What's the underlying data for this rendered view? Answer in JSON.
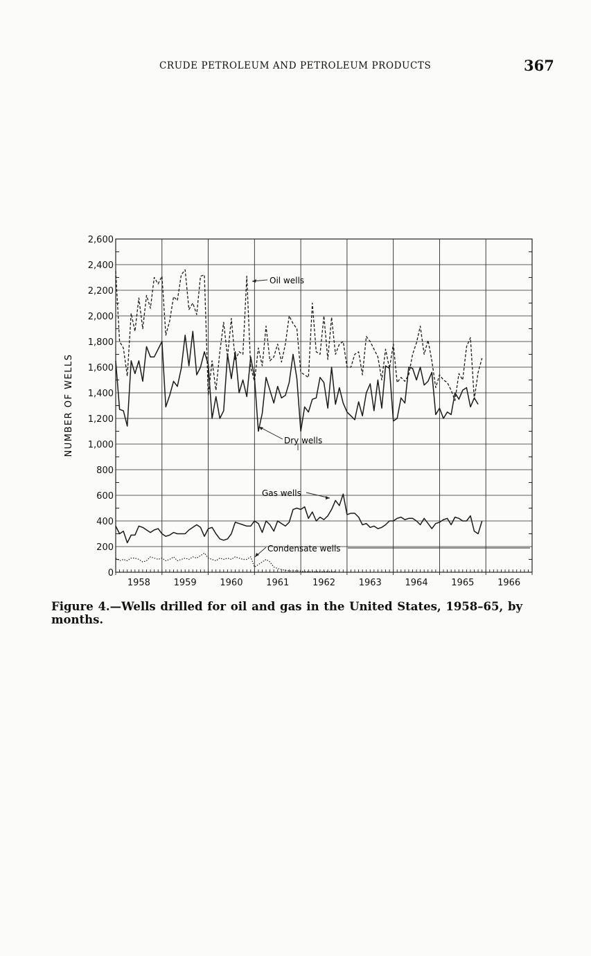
{
  "page": {
    "running_head": "CRUDE PETROLEUM AND PETROLEUM PRODUCTS",
    "page_number": "367",
    "caption": "Figure 4.—Wells drilled for oil and gas in the United States, 1958–65, by months."
  },
  "chart_data": {
    "type": "line",
    "ylabel": "NUMBER OF WELLS",
    "ylim": [
      0,
      2600
    ],
    "yticks": [
      0,
      200,
      400,
      600,
      800,
      1000,
      1200,
      1400,
      1600,
      1800,
      2000,
      2200,
      2400,
      2600
    ],
    "ytick_labels": [
      "0",
      "200",
      "400",
      "600",
      "800",
      "1,000",
      "1,200",
      "1,400",
      "1,600",
      "1,800",
      "2,000",
      "2,200",
      "2,400",
      "2,600"
    ],
    "x_unit": "years",
    "xlim": [
      1958,
      1967
    ],
    "year_labels": [
      "1958",
      "1959",
      "1960",
      "1961",
      "1962",
      "1963",
      "1964",
      "1965",
      "1966"
    ],
    "grid": true,
    "series": [
      {
        "name": "Oil wells",
        "style": "dashed",
        "color": "#1a1a1a",
        "values": [
          2350,
          1800,
          1750,
          1530,
          2020,
          1880,
          2140,
          1900,
          2160,
          2060,
          2300,
          2250,
          2310,
          1850,
          1960,
          2150,
          2120,
          2320,
          2360,
          2050,
          2100,
          2010,
          2310,
          2320,
          1380,
          1650,
          1420,
          1720,
          1950,
          1680,
          1980,
          1650,
          1720,
          1700,
          2310,
          1600,
          1490,
          1750,
          1610,
          1920,
          1650,
          1680,
          1780,
          1640,
          1780,
          2000,
          1940,
          1900,
          1560,
          1540,
          1520,
          2100,
          1720,
          1700,
          2000,
          1660,
          1990,
          1700,
          1780,
          1800,
          1600,
          1600,
          1700,
          1720,
          1540,
          1840,
          1800,
          1740,
          1680,
          1500,
          1740,
          1590,
          1780,
          1480,
          1520,
          1490,
          1540,
          1700,
          1790,
          1920,
          1700,
          1810,
          1650,
          1440,
          1540,
          1500,
          1480,
          1420,
          1340,
          1550,
          1500,
          1760,
          1830,
          1350,
          1560,
          1670
        ]
      },
      {
        "name": "Dry wells",
        "style": "solid",
        "color": "#1a1a1a",
        "values": [
          1650,
          1270,
          1260,
          1140,
          1650,
          1550,
          1650,
          1490,
          1760,
          1680,
          1680,
          1740,
          1800,
          1290,
          1380,
          1490,
          1450,
          1590,
          1850,
          1610,
          1880,
          1540,
          1600,
          1720,
          1620,
          1200,
          1370,
          1200,
          1260,
          1700,
          1510,
          1720,
          1400,
          1500,
          1370,
          1680,
          1520,
          1100,
          1240,
          1520,
          1420,
          1320,
          1450,
          1360,
          1380,
          1480,
          1700,
          1510,
          1100,
          1290,
          1250,
          1350,
          1360,
          1520,
          1480,
          1280,
          1600,
          1310,
          1440,
          1320,
          1250,
          1220,
          1190,
          1330,
          1220,
          1400,
          1470,
          1260,
          1500,
          1280,
          1610,
          1590,
          1180,
          1200,
          1360,
          1320,
          1600,
          1590,
          1500,
          1600,
          1460,
          1490,
          1560,
          1230,
          1280,
          1200,
          1250,
          1230,
          1400,
          1350,
          1420,
          1440,
          1290,
          1360,
          1310
        ]
      },
      {
        "name": "Gas wells",
        "style": "solid",
        "color": "#1a1a1a",
        "values": [
          360,
          300,
          320,
          230,
          290,
          290,
          360,
          350,
          330,
          310,
          330,
          340,
          300,
          280,
          290,
          310,
          300,
          300,
          300,
          330,
          350,
          370,
          350,
          280,
          340,
          350,
          300,
          260,
          250,
          260,
          300,
          390,
          380,
          370,
          360,
          360,
          400,
          380,
          310,
          400,
          370,
          320,
          400,
          380,
          360,
          390,
          490,
          500,
          490,
          510,
          420,
          470,
          400,
          430,
          410,
          440,
          490,
          560,
          520,
          610,
          450,
          460,
          460,
          430,
          370,
          380,
          350,
          360,
          340,
          350,
          370,
          400,
          400,
          420,
          430,
          410,
          420,
          420,
          400,
          370,
          420,
          380,
          340,
          380,
          390,
          410,
          420,
          370,
          430,
          420,
          400,
          400,
          440,
          320,
          300,
          400
        ]
      },
      {
        "name": "Condensate wells",
        "style": "dotted",
        "color": "#1a1a1a",
        "values": [
          110,
          90,
          100,
          90,
          110,
          110,
          100,
          80,
          90,
          120,
          110,
          100,
          110,
          90,
          100,
          120,
          90,
          100,
          110,
          100,
          120,
          110,
          130,
          150,
          110,
          100,
          90,
          110,
          100,
          110,
          100,
          120,
          110,
          100,
          100,
          120,
          40,
          60,
          80,
          100,
          80,
          40,
          30,
          20,
          15,
          10,
          10,
          10,
          8,
          5,
          5,
          5,
          5,
          5,
          5,
          5,
          5,
          5
        ]
      }
    ],
    "annotations": [
      "Oil wells",
      "Dry wells",
      "Gas wells",
      "Condensate wells"
    ]
  }
}
